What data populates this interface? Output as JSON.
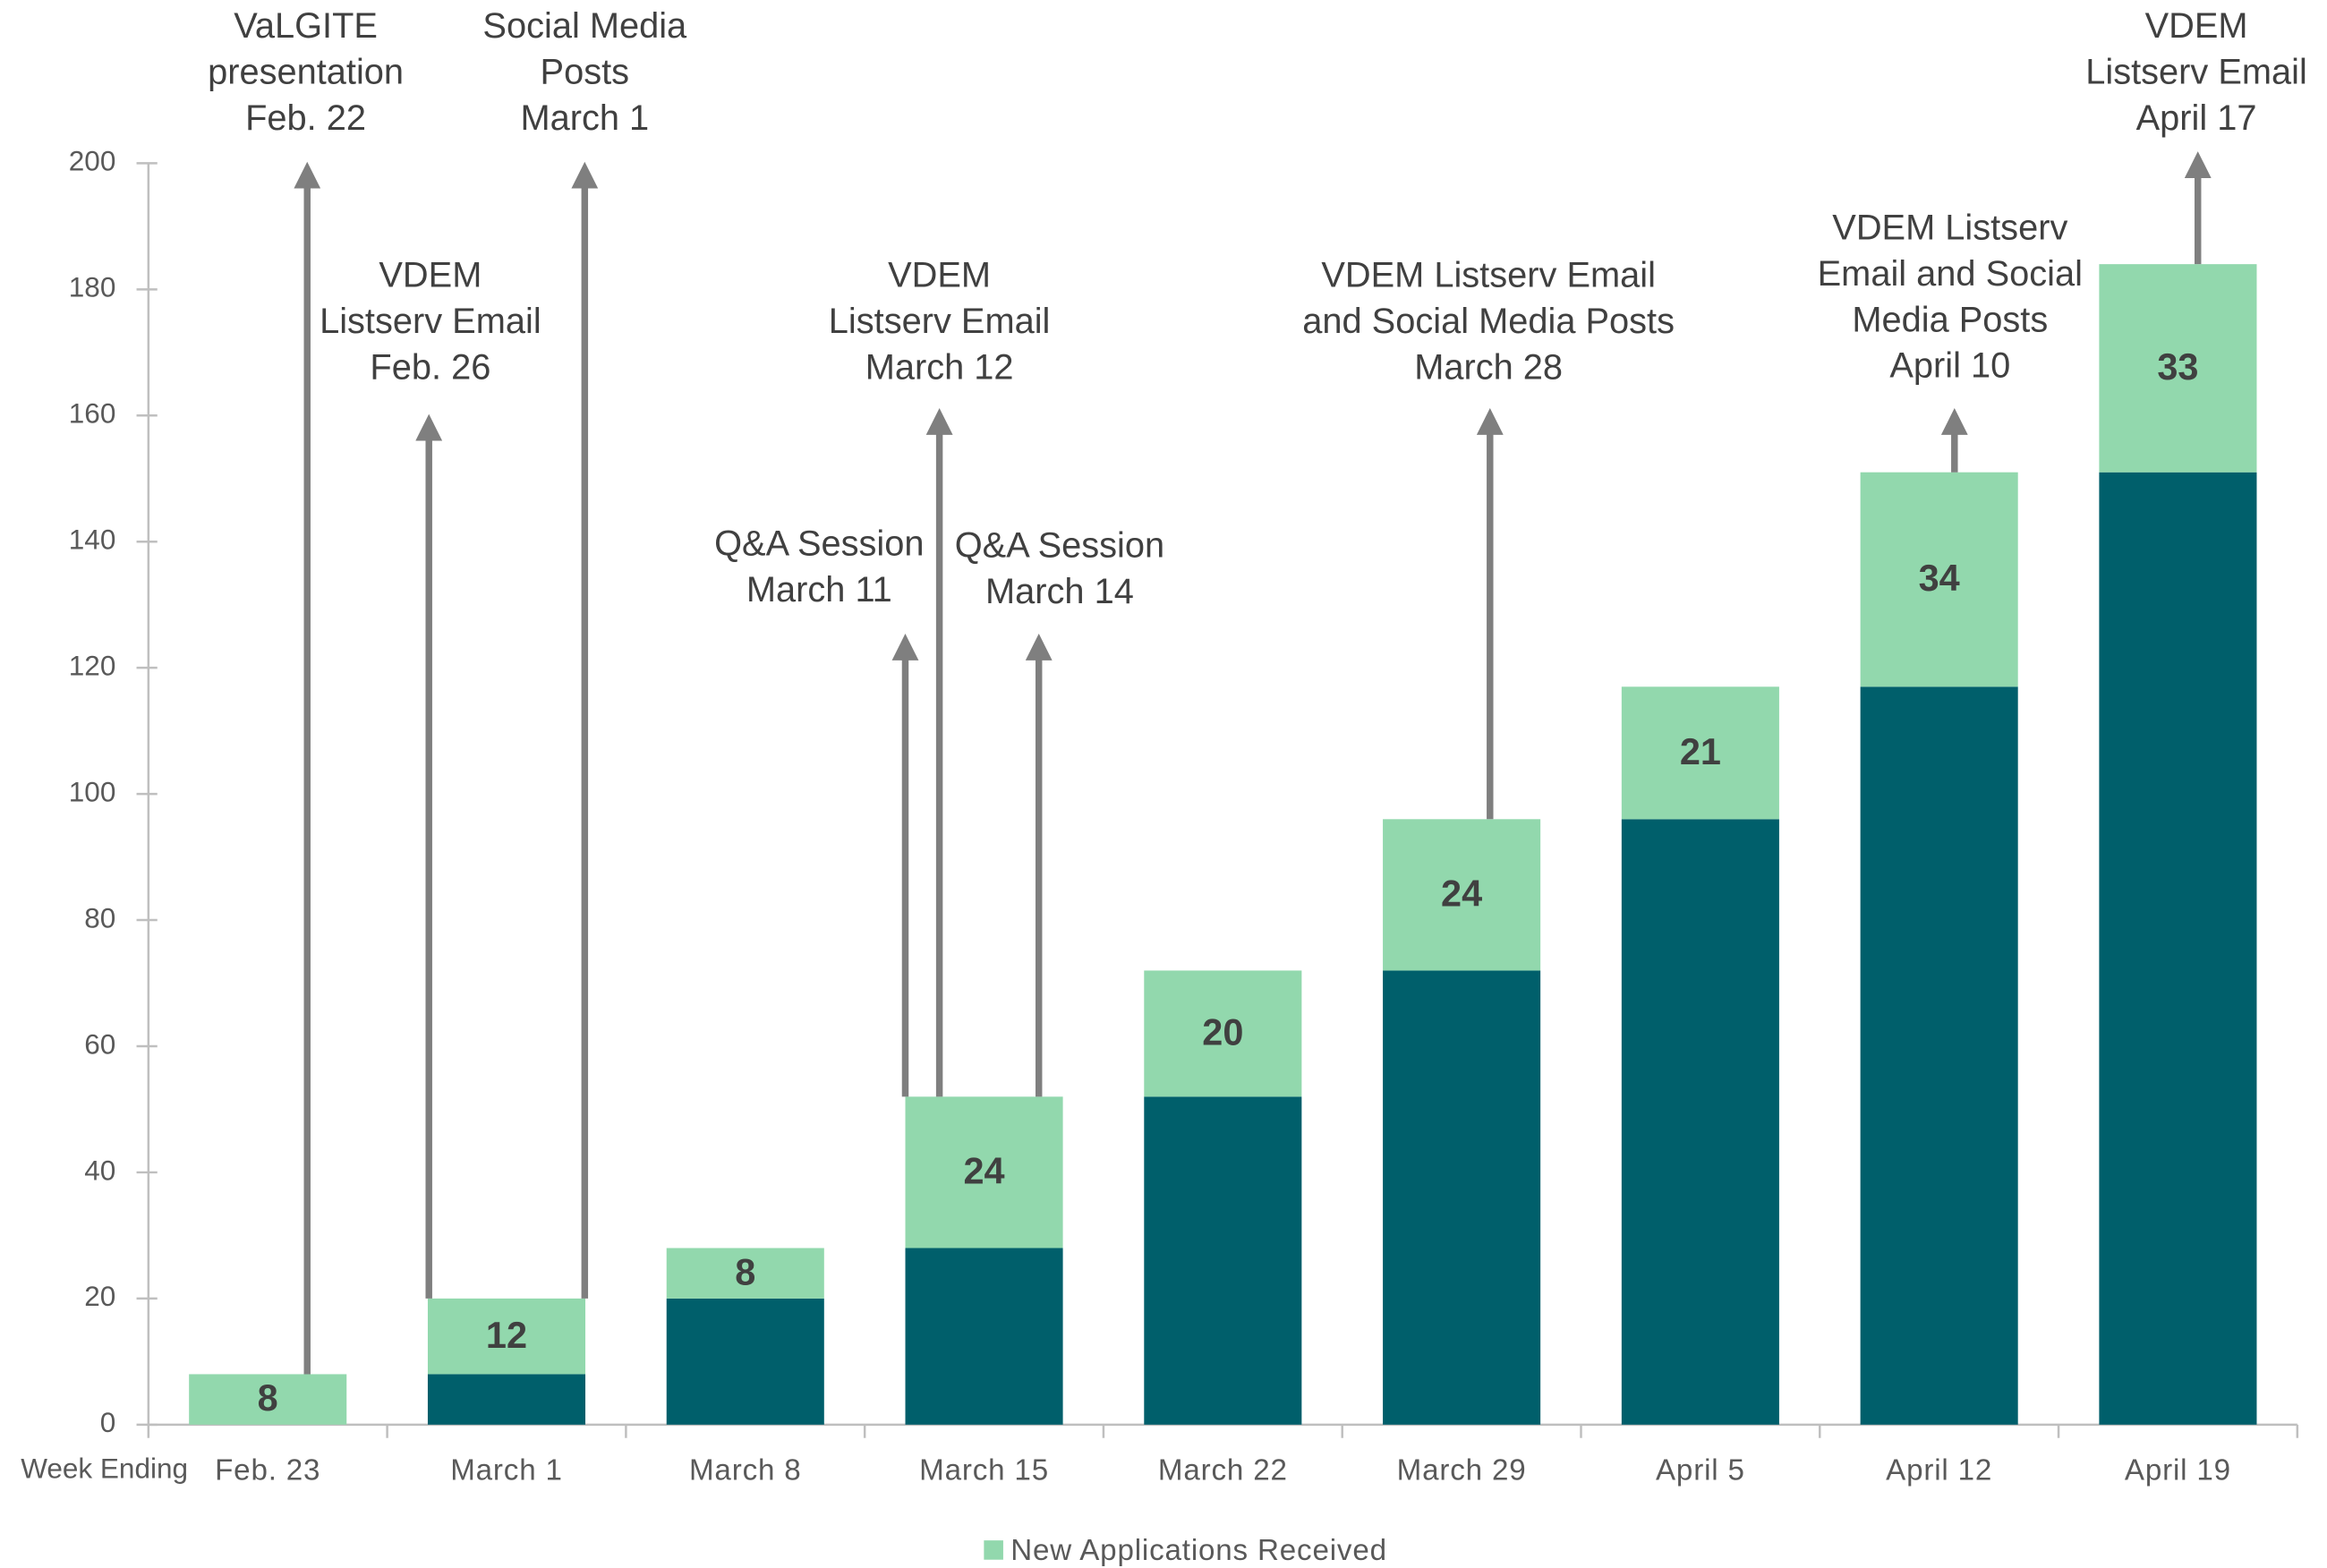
{
  "chart_data": {
    "type": "stacked_bar",
    "x_label": "Week Ending",
    "categories": [
      "Feb. 23",
      "March 1",
      "March 8",
      "March 15",
      "March 22",
      "March 29",
      "April 5",
      "April 12",
      "April 19"
    ],
    "series": [
      {
        "color": "#005f6b",
        "values": [
          0,
          8,
          20,
          28,
          52,
          72,
          96,
          117,
          151
        ]
      },
      {
        "name": "New Applications Received",
        "color": "#92d8ad",
        "values": [
          8,
          12,
          8,
          24,
          20,
          24,
          21,
          34,
          33
        ],
        "show_labels": true
      }
    ],
    "ylim": [
      0,
      200
    ],
    "yticks": [
      0,
      20,
      40,
      60,
      80,
      100,
      120,
      140,
      160,
      180,
      200
    ],
    "legend": "bottom",
    "annotations": [
      {
        "lines": [
          "VaLGITE",
          "presentation",
          "Feb. 22"
        ]
      },
      {
        "lines": [
          "Social Media",
          "Posts",
          "March 1"
        ]
      },
      {
        "lines": [
          "VDEM",
          "Listserv Email",
          "Feb. 26"
        ]
      },
      {
        "lines": [
          "Q&A Session",
          "March 11"
        ]
      },
      {
        "lines": [
          "VDEM",
          "Listserv Email",
          "March 12"
        ]
      },
      {
        "lines": [
          "Q&A Session",
          "March 14"
        ]
      },
      {
        "lines": [
          "VDEM Listserv Email",
          "and Social Media Posts",
          "March 28"
        ]
      },
      {
        "lines": [
          "VDEM Listserv",
          "Email and Social",
          "Media Posts",
          "April 10"
        ]
      },
      {
        "lines": [
          "VDEM",
          "Listserv Email",
          "April 17"
        ]
      }
    ]
  }
}
